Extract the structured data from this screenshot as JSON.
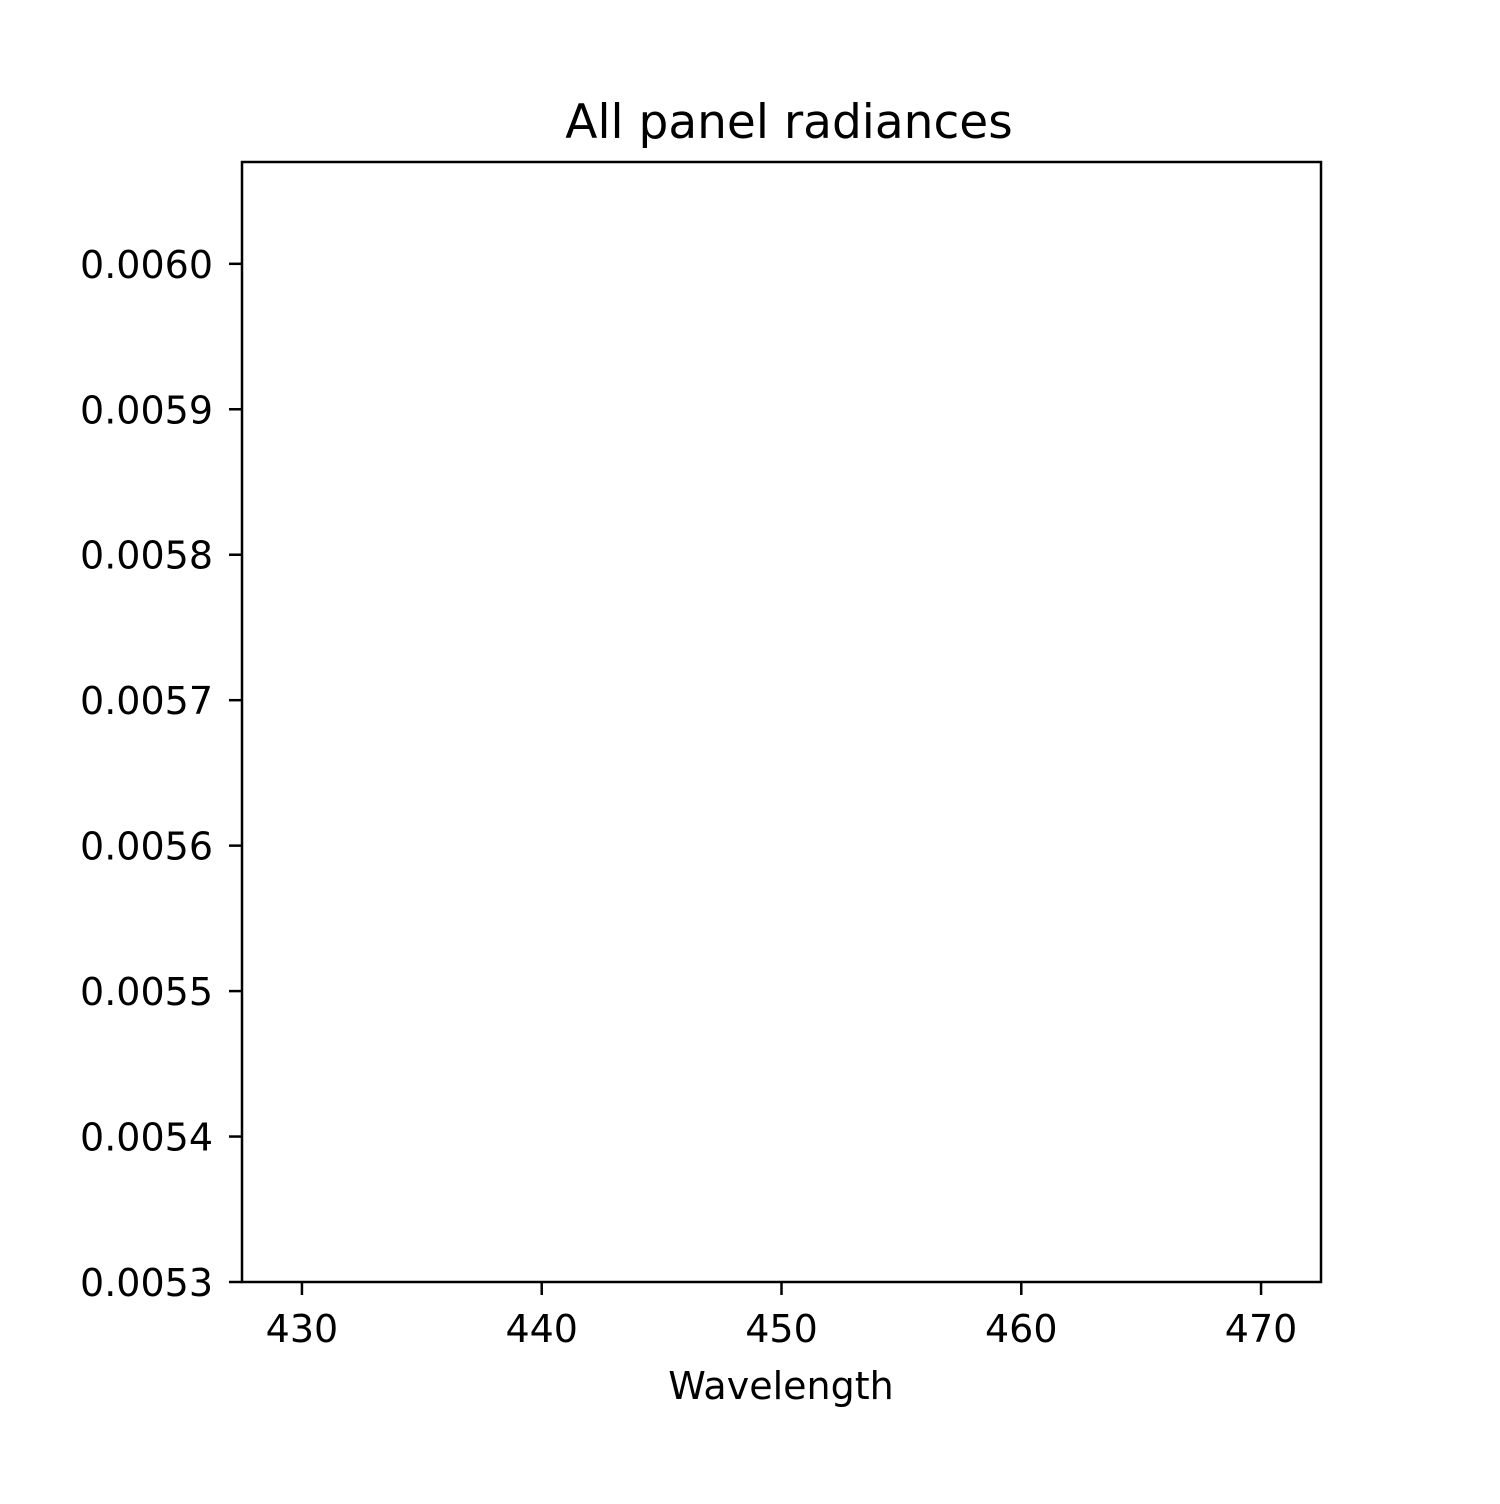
{
  "chart_data": {
    "type": "line",
    "title": "All panel radiances",
    "xlabel": "Wavelength",
    "ylabel": "",
    "xlim": [
      427.5,
      472.5
    ],
    "ylim": [
      0.0053,
      0.00607
    ],
    "x_ticks": [
      430,
      440,
      450,
      460,
      470
    ],
    "x_tick_labels": [
      "430",
      "440",
      "450",
      "460",
      "470"
    ],
    "y_ticks": [
      0.0053,
      0.0054,
      0.0055,
      0.0056,
      0.0057,
      0.0058,
      0.0059,
      0.006
    ],
    "y_tick_labels": [
      "0.0053",
      "0.0054",
      "0.0055",
      "0.0056",
      "0.0057",
      "0.0058",
      "0.0059",
      "0.0060"
    ],
    "grid": false,
    "legend": "none",
    "series": [],
    "colors": {
      "axes": "#000000",
      "background": "#ffffff"
    }
  }
}
